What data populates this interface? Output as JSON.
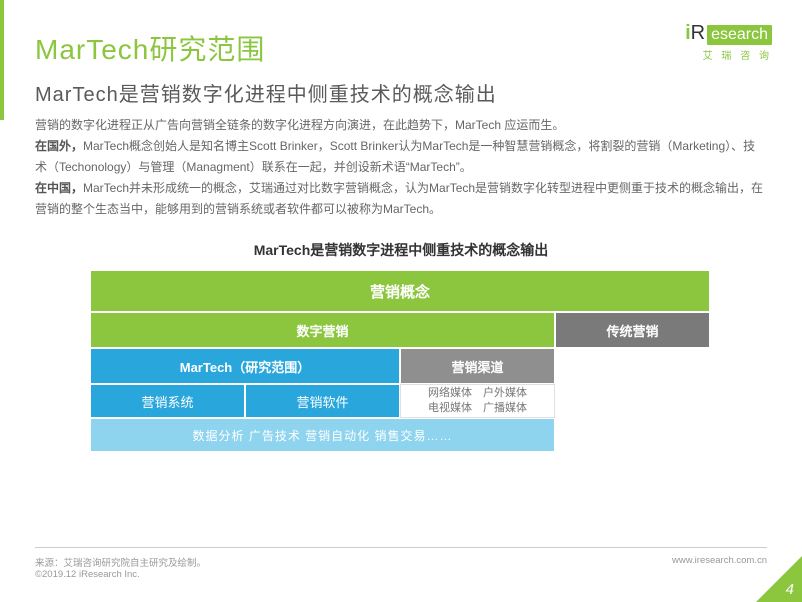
{
  "header": {
    "title": "MarTech研究范围",
    "subtitle": "MarTech是营销数字化进程中侧重技术的概念输出"
  },
  "logo": {
    "prefix": "i",
    "mid": "R",
    "suffix": "esearch",
    "sub": "艾 瑞 咨 询"
  },
  "body": {
    "p1": "营销的数字化进程正从广告向营销全链条的数字化进程方向演进，在此趋势下，MarTech 应运而生。",
    "p2a": "在国外，",
    "p2b": "MarTech概念创始人是知名博主Scott Brinker，Scott Brinker认为MarTech是一种智慧营销概念，将割裂的营销（Marketing）、技术（Techonology）与管理（Managment）联系在一起，并创设新术语“MarTech”。",
    "p3a": "在中国，",
    "p3b": "MarTech并未形成统一的概念，艾瑞通过对比数字营销概念，认为MarTech是营销数字化转型进程中更侧重于技术的概念输出，在营销的整个生态当中，能够用到的营销系统或者软件都可以被称为MarTech。"
  },
  "diagram": {
    "title": "MarTech是营销数字进程中侧重技术的概念输出",
    "r1c1": "营销概念",
    "r2c1": "数字营销",
    "r2c2": "传统营销",
    "r3c1": "MarTech（研究范围）",
    "r3c2": "营销渠道",
    "r4c1": "营销系统",
    "r4c2": "营销软件",
    "r4c3_l1": "网络媒体　户外媒体",
    "r4c3_l2": "电视媒体　广播媒体",
    "r5c1": "数据分析  广告技术  营销自动化  销售交易……",
    "colors": {
      "green": "#8bc63e",
      "blue": "#29a7dd",
      "lightblue": "#8fd4ee",
      "grey_dark": "#7a7a7a",
      "grey_mid": "#8f8f8f"
    }
  },
  "footer": {
    "source": "来源：艾瑞咨询研究院自主研究及绘制。",
    "copyright": "©2019.12 iResearch Inc.",
    "url": "www.iresearch.com.cn"
  },
  "page_number": "4"
}
